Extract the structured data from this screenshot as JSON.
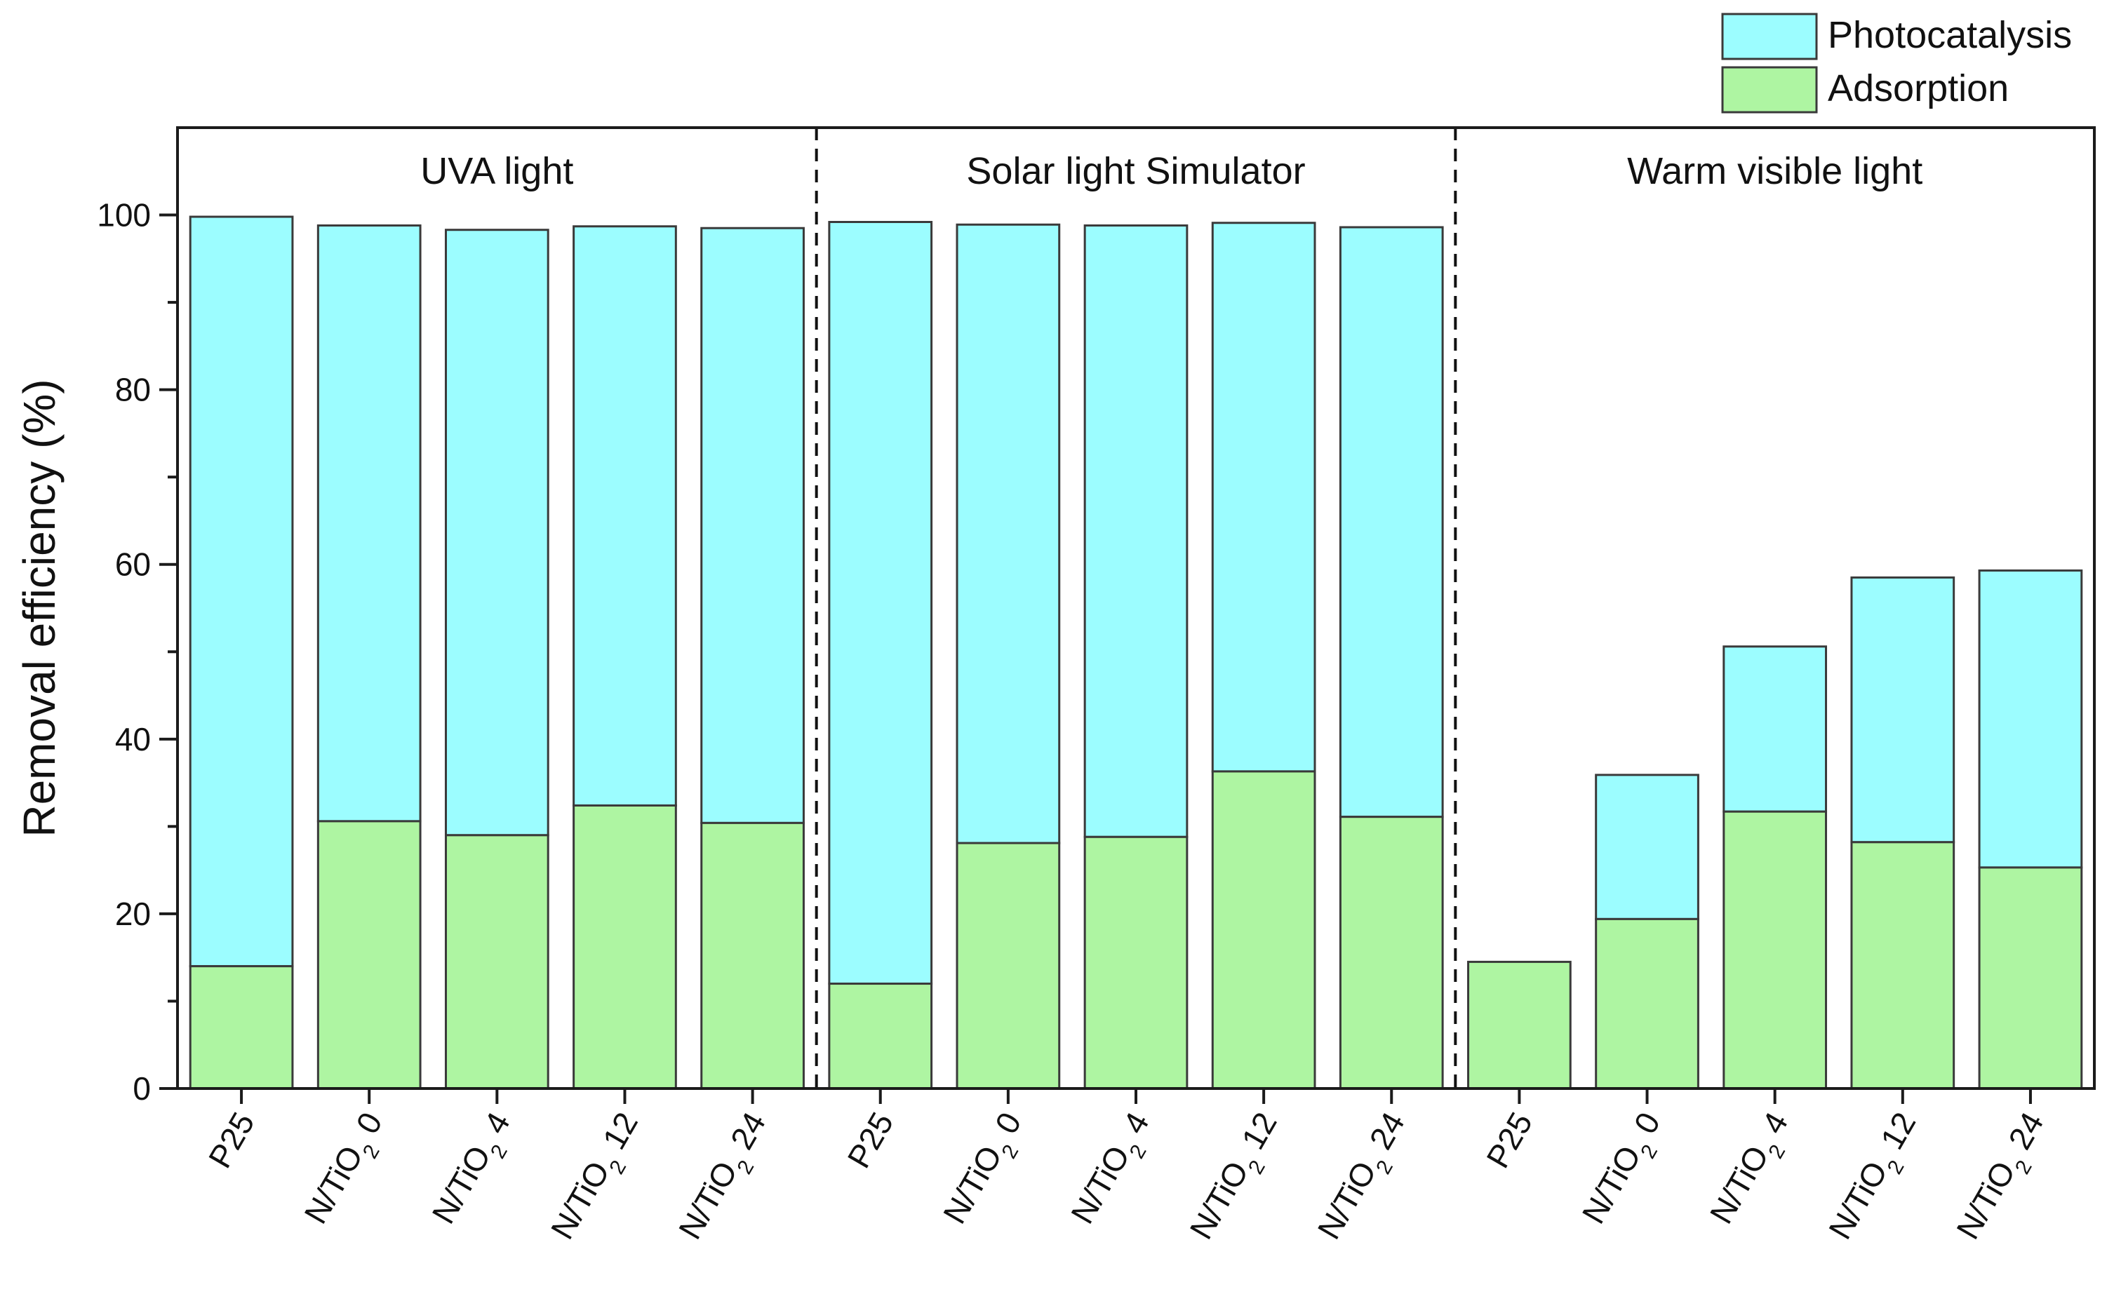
{
  "chart_data": {
    "type": "bar",
    "subtype": "stacked",
    "title": "",
    "xlabel": "",
    "ylabel": "Removal efficiency (%)",
    "ylim": [
      0,
      110
    ],
    "yticks": [
      0,
      20,
      40,
      60,
      80,
      100
    ],
    "groups": [
      {
        "label": "UVA light",
        "categories": [
          "P25",
          "N/TiO2 0",
          "N/TiO2 4",
          "N/TiO2 12",
          "N/TiO2 24"
        ],
        "adsorption": [
          14.0,
          30.6,
          29.0,
          32.4,
          30.4
        ],
        "total": [
          99.8,
          98.8,
          98.3,
          98.7,
          98.5
        ]
      },
      {
        "label": "Solar light Simulator",
        "categories": [
          "P25",
          "N/TiO2 0",
          "N/TiO2 4",
          "N/TiO2 12",
          "N/TiO2 24"
        ],
        "adsorption": [
          12.0,
          28.1,
          28.8,
          36.3,
          31.1
        ],
        "total": [
          99.2,
          98.9,
          98.8,
          99.1,
          98.6
        ]
      },
      {
        "label": "Warm visible light",
        "categories": [
          "P25",
          "N/TiO2 0",
          "N/TiO2 4",
          "N/TiO2 12",
          "N/TiO2 24"
        ],
        "adsorption": [
          14.5,
          19.4,
          31.7,
          28.2,
          25.3
        ],
        "total": [
          14.5,
          35.9,
          50.6,
          58.5,
          59.3
        ]
      }
    ],
    "series": [
      {
        "name": "Photocatalysis",
        "color": "#9cfdff"
      },
      {
        "name": "Adsorption",
        "color": "#aef5a2"
      }
    ],
    "legend_position": "top-right"
  },
  "colors": {
    "axis": "#1b1b1b",
    "bar_outline": "#3a3a3a"
  }
}
